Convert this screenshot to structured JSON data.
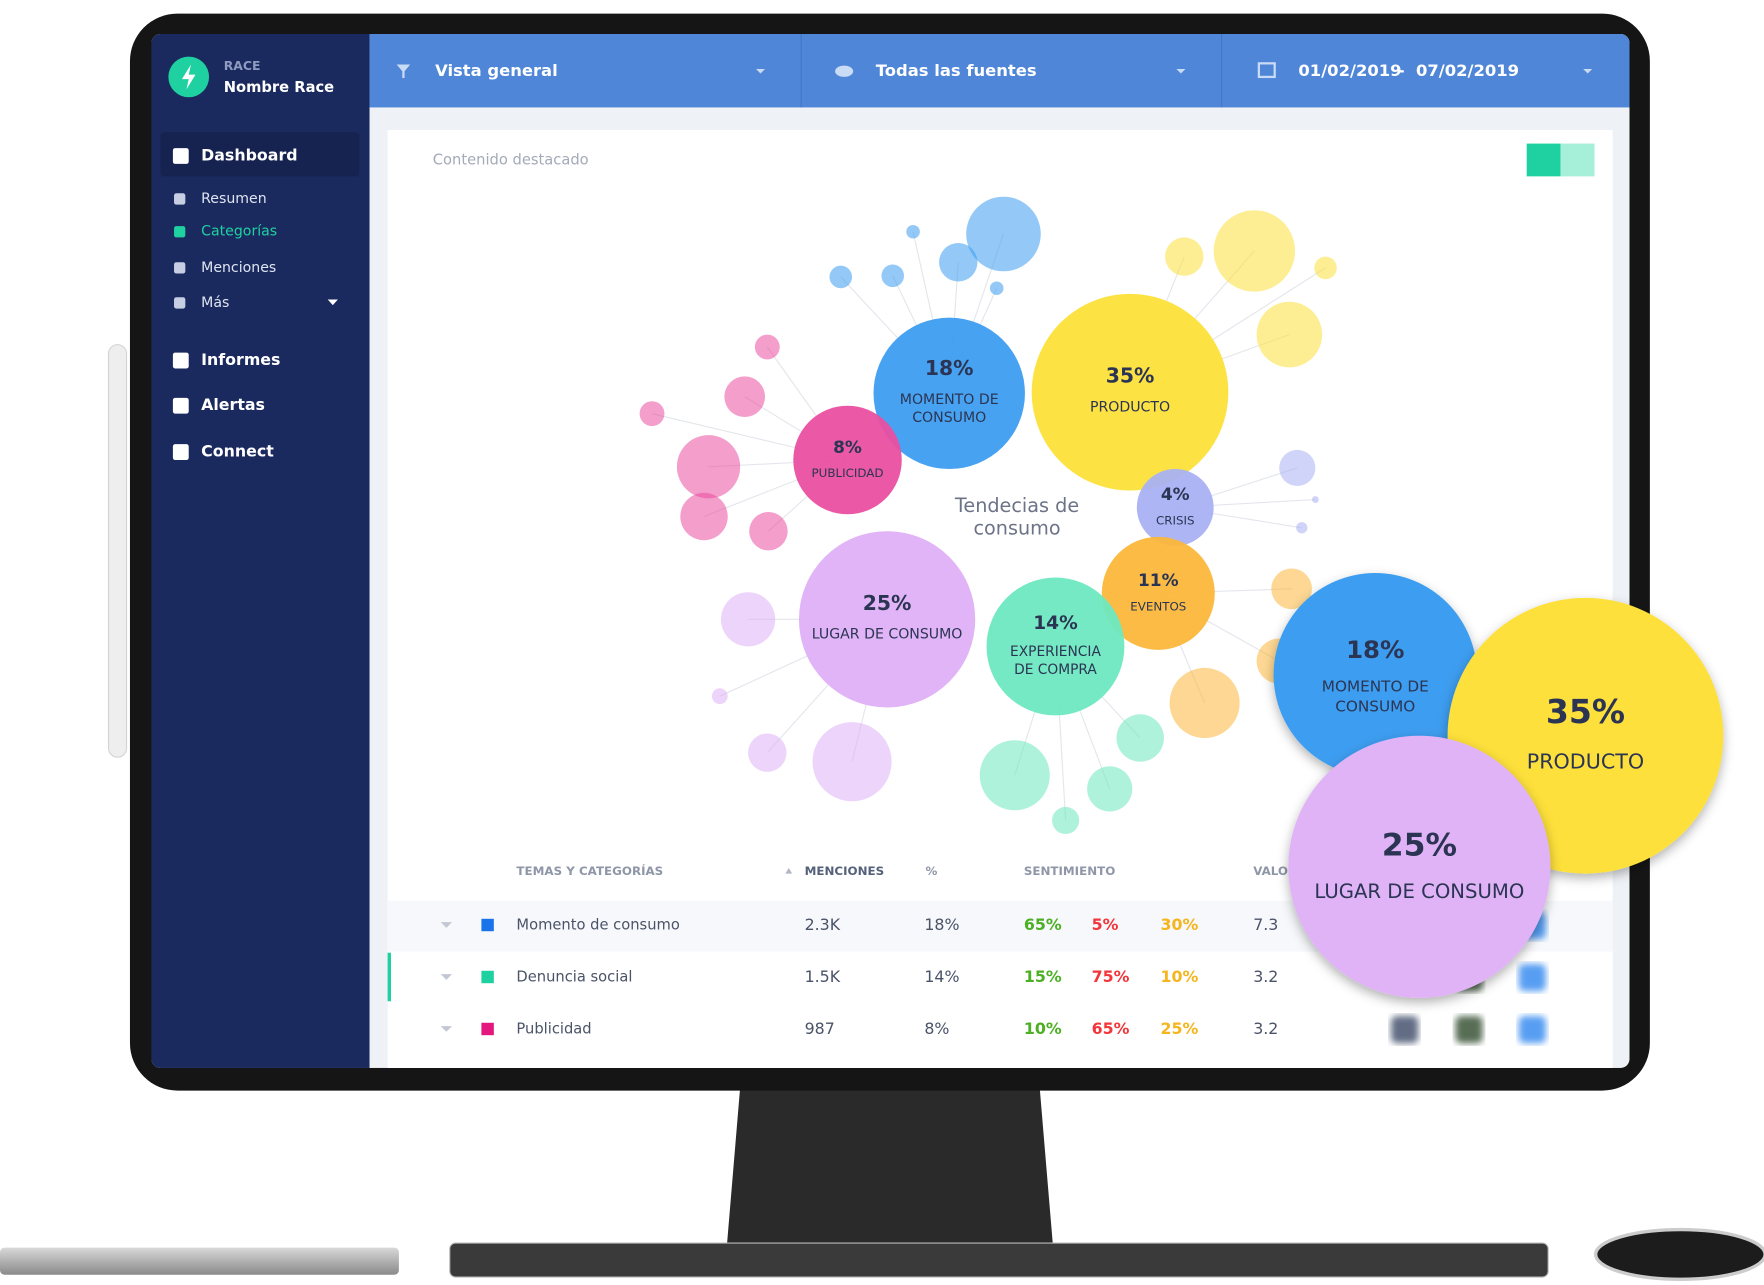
{
  "sidebar": {
    "brand_label": "RACE",
    "brand_name": "Nombre Race",
    "menu": [
      "Dashboard",
      "Resumen",
      "Categorías",
      "Menciones",
      "Más",
      "Informes",
      "Alertas",
      "Connect"
    ]
  },
  "topbar": {
    "filter": "Vista general",
    "source": "Todas las fuentes",
    "date_from": "01/02/2019",
    "date_separator": "-",
    "date_to": "07/02/2019"
  },
  "panel": {
    "title": "Contenido destacado",
    "center_label": [
      "Tendecias de",
      "consumo"
    ],
    "bubbles": [
      {
        "percent": "18%",
        "label": [
          "MOMENTO DE",
          "CONSUMO"
        ]
      },
      {
        "percent": "35%",
        "label": [
          "PRODUCTO"
        ]
      },
      {
        "percent": "8%",
        "label": [
          "PUBLICIDAD"
        ]
      },
      {
        "percent": "4%",
        "label": [
          "CRISIS"
        ]
      },
      {
        "percent": "25%",
        "label": [
          "LUGAR DE CONSUMO"
        ]
      },
      {
        "percent": "11%",
        "label": [
          "EVENTOS"
        ]
      },
      {
        "percent": "14%",
        "label": [
          "EXPERIENCIA",
          "DE COMPRA"
        ]
      }
    ]
  },
  "table": {
    "headers": [
      "TEMAS Y CATEGORÍAS",
      "MENCIONES",
      "%",
      "SENTIMIENTO",
      "VALOR"
    ],
    "rows": [
      [
        "Momento de consumo",
        "2.3K",
        "18%",
        "65%",
        "5%",
        "30%",
        "7.3"
      ],
      [
        "Denuncia social",
        "1.5K",
        "14%",
        "15%",
        "75%",
        "10%",
        "3.2"
      ],
      [
        "Publicidad",
        "987",
        "8%",
        "10%",
        "65%",
        "25%",
        "3.2"
      ]
    ]
  },
  "zoom": {
    "bubbles": [
      {
        "percent": "18%",
        "label": [
          "MOMENTO DE",
          "CONSUMO"
        ]
      },
      {
        "percent": "35%",
        "label": [
          "PRODUCTO"
        ]
      },
      {
        "percent": "25%",
        "label": [
          "LUGAR DE CONSUMO"
        ]
      }
    ]
  }
}
